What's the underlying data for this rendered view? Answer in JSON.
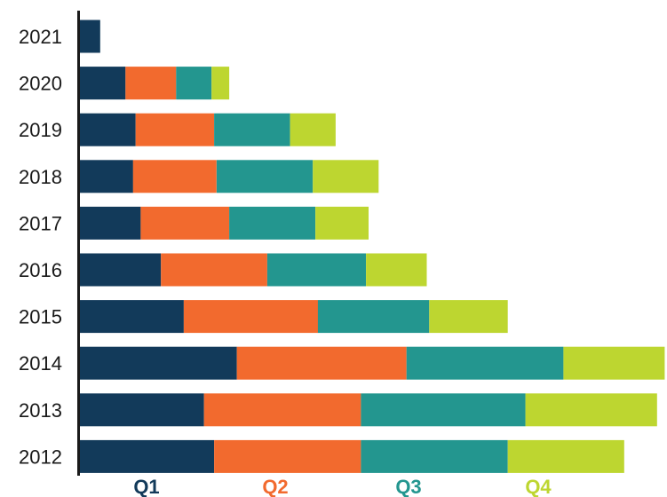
{
  "chart_data": {
    "type": "bar",
    "orientation": "horizontal",
    "stacked": true,
    "categories": [
      "2021",
      "2020",
      "2019",
      "2018",
      "2017",
      "2016",
      "2015",
      "2014",
      "2013",
      "2012"
    ],
    "series": [
      {
        "name": "Q1",
        "color": "#123a5a",
        "values": [
          4,
          9,
          11,
          10.5,
          12,
          16,
          20.5,
          31,
          24.5,
          26.5
        ]
      },
      {
        "name": "Q2",
        "color": "#f26a2e",
        "values": [
          0,
          10,
          15.5,
          16.5,
          17.5,
          21,
          26.5,
          33.5,
          31,
          29
        ]
      },
      {
        "name": "Q3",
        "color": "#23968f",
        "values": [
          0,
          7,
          15,
          19,
          17,
          19.5,
          22,
          31,
          32.5,
          29
        ]
      },
      {
        "name": "Q4",
        "color": "#bdd630",
        "values": [
          0,
          3.5,
          9,
          13,
          10.5,
          12,
          15.5,
          20,
          26,
          23
        ]
      }
    ],
    "legend_position": "bottom",
    "grid": false
  }
}
